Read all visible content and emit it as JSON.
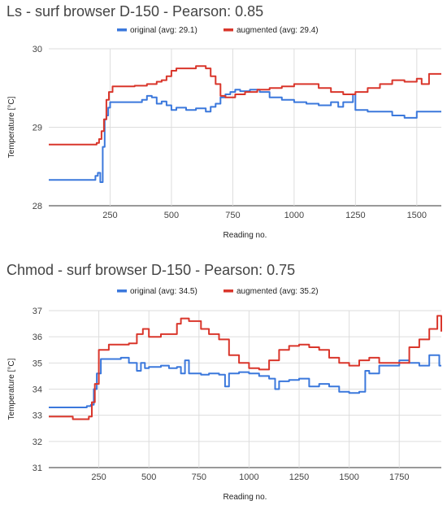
{
  "chart_data": [
    {
      "type": "line",
      "title": "Ls - surf browser D-150 - Pearson: 0.85",
      "xlabel": "Reading no.",
      "ylabel": "Temperature [°C]",
      "xlim": [
        0,
        1600
      ],
      "ylim": [
        28,
        30
      ],
      "xticks": [
        250,
        500,
        750,
        1000,
        1250,
        1500
      ],
      "yticks": [
        28,
        29,
        30
      ],
      "grid": "vertical",
      "legend_position": "top-center",
      "series": [
        {
          "name": "original (avg: 29.1)",
          "color": "#3b78dc",
          "step": true,
          "x": [
            0,
            190,
            200,
            210,
            220,
            228,
            235,
            242,
            250,
            300,
            380,
            400,
            420,
            440,
            460,
            480,
            500,
            520,
            560,
            600,
            640,
            660,
            680,
            700,
            720,
            740,
            760,
            780,
            820,
            860,
            900,
            950,
            1000,
            1050,
            1100,
            1150,
            1180,
            1200,
            1240,
            1250,
            1300,
            1350,
            1400,
            1450,
            1500,
            1550,
            1600
          ],
          "values": [
            28.33,
            28.38,
            28.42,
            28.3,
            28.75,
            29.1,
            29.15,
            29.25,
            29.32,
            29.32,
            29.35,
            29.4,
            29.38,
            29.3,
            29.33,
            29.28,
            29.22,
            29.25,
            29.22,
            29.24,
            29.2,
            29.26,
            29.3,
            29.38,
            29.42,
            29.45,
            29.48,
            29.46,
            29.48,
            29.45,
            29.38,
            29.35,
            29.32,
            29.3,
            29.28,
            29.32,
            29.26,
            29.32,
            29.42,
            29.22,
            29.2,
            29.2,
            29.15,
            29.12,
            29.2,
            29.2,
            29.2
          ]
        },
        {
          "name": "augmented (avg: 29.4)",
          "color": "#d9362b",
          "step": true,
          "x": [
            0,
            195,
            205,
            215,
            225,
            235,
            245,
            260,
            300,
            350,
            400,
            440,
            460,
            480,
            500,
            520,
            560,
            600,
            640,
            660,
            680,
            700,
            720,
            760,
            800,
            850,
            900,
            950,
            1000,
            1050,
            1100,
            1150,
            1200,
            1250,
            1300,
            1350,
            1400,
            1450,
            1500,
            1520,
            1550,
            1600
          ],
          "values": [
            28.78,
            28.8,
            28.85,
            28.95,
            29.1,
            29.35,
            29.45,
            29.52,
            29.52,
            29.53,
            29.55,
            29.58,
            29.6,
            29.65,
            29.72,
            29.75,
            29.75,
            29.78,
            29.75,
            29.65,
            29.55,
            29.4,
            29.38,
            29.42,
            29.45,
            29.48,
            29.5,
            29.52,
            29.55,
            29.55,
            29.5,
            29.45,
            29.42,
            29.45,
            29.5,
            29.55,
            29.6,
            29.58,
            29.62,
            29.55,
            29.68,
            29.68
          ]
        }
      ]
    },
    {
      "type": "line",
      "title": "Chmod - surf browser D-150 - Pearson: 0.75",
      "xlabel": "Reading no.",
      "ylabel": "Temperature [°C]",
      "xlim": [
        0,
        1960
      ],
      "ylim": [
        31,
        37
      ],
      "xticks": [
        250,
        500,
        750,
        1000,
        1250,
        1500,
        1750
      ],
      "yticks": [
        31,
        32,
        33,
        34,
        35,
        36,
        37
      ],
      "grid": "vertical",
      "legend_position": "top-center",
      "series": [
        {
          "name": "original (avg: 34.5)",
          "color": "#3b78dc",
          "step": true,
          "x": [
            0,
            190,
            210,
            225,
            240,
            260,
            300,
            360,
            400,
            440,
            460,
            480,
            500,
            560,
            600,
            640,
            660,
            680,
            700,
            760,
            800,
            850,
            880,
            900,
            950,
            1000,
            1050,
            1100,
            1130,
            1150,
            1200,
            1250,
            1300,
            1350,
            1400,
            1450,
            1500,
            1550,
            1580,
            1600,
            1650,
            1700,
            1750,
            1800,
            1850,
            1900,
            1950,
            1960
          ],
          "values": [
            33.3,
            33.35,
            33.4,
            34.0,
            34.6,
            35.15,
            35.15,
            35.2,
            35.0,
            34.7,
            35.0,
            34.8,
            34.85,
            34.9,
            34.8,
            34.85,
            34.6,
            35.1,
            34.6,
            34.55,
            34.6,
            34.55,
            34.1,
            34.6,
            34.65,
            34.6,
            34.5,
            34.4,
            34.0,
            34.3,
            34.35,
            34.4,
            34.1,
            34.2,
            34.1,
            33.9,
            33.85,
            33.9,
            34.7,
            34.6,
            34.9,
            34.9,
            35.1,
            35.0,
            34.9,
            35.3,
            34.9,
            34.9
          ]
        },
        {
          "name": "augmented (avg: 35.2)",
          "color": "#d9362b",
          "step": true,
          "x": [
            0,
            40,
            120,
            200,
            215,
            230,
            250,
            300,
            350,
            400,
            440,
            470,
            500,
            560,
            600,
            640,
            660,
            700,
            760,
            800,
            850,
            900,
            950,
            1000,
            1050,
            1100,
            1150,
            1200,
            1250,
            1300,
            1350,
            1400,
            1450,
            1500,
            1550,
            1600,
            1650,
            1700,
            1750,
            1800,
            1850,
            1900,
            1940,
            1960
          ],
          "values": [
            32.95,
            32.95,
            32.85,
            32.95,
            33.5,
            34.2,
            35.5,
            35.7,
            35.7,
            35.75,
            36.1,
            36.3,
            36.0,
            36.1,
            36.1,
            36.5,
            36.7,
            36.6,
            36.3,
            36.1,
            35.9,
            35.3,
            35.0,
            34.8,
            34.75,
            35.1,
            35.5,
            35.65,
            35.7,
            35.6,
            35.5,
            35.2,
            35.0,
            34.9,
            35.1,
            35.2,
            35.0,
            35.0,
            35.0,
            35.6,
            35.9,
            36.3,
            36.8,
            36.2
          ]
        }
      ]
    }
  ]
}
